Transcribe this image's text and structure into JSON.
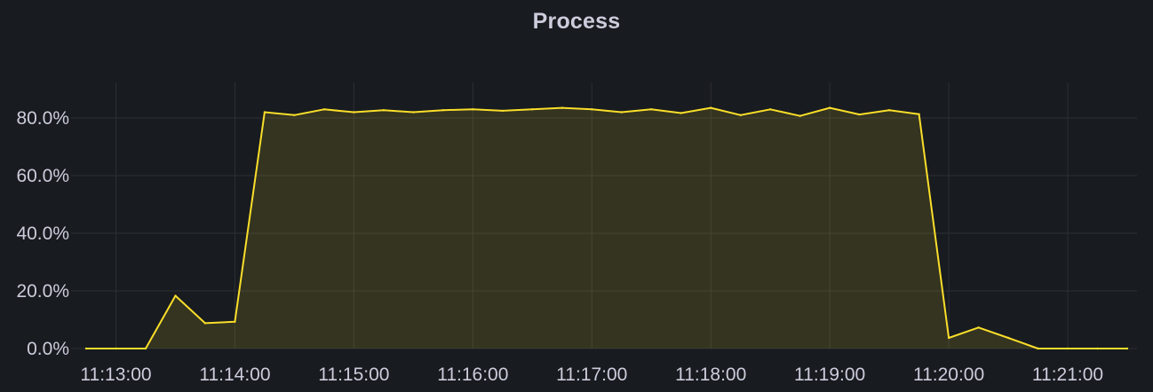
{
  "panel": {
    "title": "Process"
  },
  "chart_data": {
    "type": "area",
    "title": "Process",
    "xlabel": "",
    "ylabel": "",
    "y_unit": "%",
    "ylim": [
      0,
      90
    ],
    "y_ticks": [
      0,
      20,
      40,
      60,
      80
    ],
    "y_tick_labels": [
      "0.0%",
      "20.0%",
      "40.0%",
      "60.0%",
      "80.0%"
    ],
    "x_ticks": [
      "11:13:00",
      "11:14:00",
      "11:15:00",
      "11:16:00",
      "11:17:00",
      "11:18:00",
      "11:19:00",
      "11:20:00",
      "11:21:00"
    ],
    "x_range": [
      "11:12:45",
      "11:21:30"
    ],
    "grid": true,
    "legend": "none",
    "series": [
      {
        "color": "#fade2a",
        "x": [
          "11:12:45",
          "11:13:00",
          "11:13:15",
          "11:13:30",
          "11:13:45",
          "11:14:00",
          "11:14:15",
          "11:14:30",
          "11:14:45",
          "11:15:00",
          "11:15:15",
          "11:15:30",
          "11:15:45",
          "11:16:00",
          "11:16:15",
          "11:16:30",
          "11:16:45",
          "11:17:00",
          "11:17:15",
          "11:17:30",
          "11:17:45",
          "11:18:00",
          "11:18:15",
          "11:18:30",
          "11:18:45",
          "11:19:00",
          "11:19:15",
          "11:19:30",
          "11:19:45",
          "11:20:00",
          "11:20:15",
          "11:20:30",
          "11:20:45",
          "11:21:00",
          "11:21:15",
          "11:21:30"
        ],
        "values": [
          0.0,
          0.0,
          0.0,
          18.3,
          8.8,
          9.3,
          82.0,
          81.0,
          83.0,
          82.0,
          82.7,
          82.0,
          82.7,
          83.0,
          82.5,
          83.0,
          83.5,
          83.0,
          82.0,
          83.0,
          81.7,
          83.5,
          81.0,
          83.0,
          80.7,
          83.5,
          81.2,
          82.7,
          81.3,
          3.7,
          7.3,
          3.7,
          0.0,
          0.0,
          0.0,
          0.0
        ]
      }
    ]
  }
}
